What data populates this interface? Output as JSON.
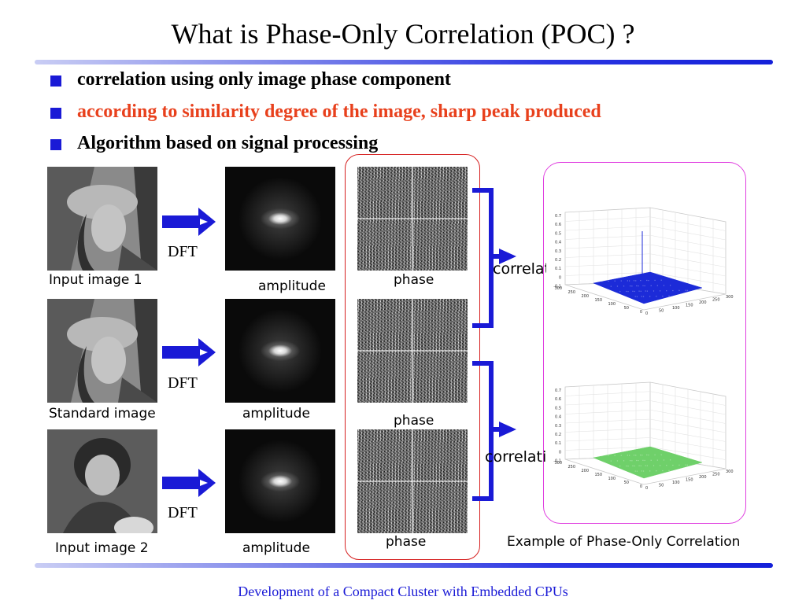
{
  "slide": {
    "title": "What is Phase-Only Correlation (POC) ?",
    "bullets": [
      {
        "text": "correlation using only image phase component",
        "color": "#000000"
      },
      {
        "text": "according to similarity degree of the image, sharp peak produced",
        "color": "#e8401c"
      },
      {
        "text": "Algorithm based on signal processing",
        "color": "#000000"
      }
    ],
    "footer": "Development of a Compact Cluster with Embedded CPUs"
  },
  "diagram": {
    "rows": [
      {
        "input_caption": "Input image 1",
        "transform": "DFT",
        "amplitude_caption": "amplitude",
        "phase_caption": "phase"
      },
      {
        "input_caption": "Standard image",
        "transform": "DFT",
        "amplitude_caption": "amplitude",
        "phase_caption": "phase"
      },
      {
        "input_caption": "Input image 2",
        "transform": "DFT",
        "amplitude_caption": "amplitude",
        "phase_caption": "phase"
      }
    ],
    "correlation_labels": [
      "correlation",
      "correlation"
    ],
    "result_caption": "Example of Phase-Only Correlation",
    "arrow_color": "#1a1ad6",
    "phase_box_color": "#d62020",
    "result_box_color": "#e040e0"
  },
  "plots": {
    "z_ticks": [
      "0.7",
      "0.6",
      "0.5",
      "0.4",
      "0.3",
      "0.2",
      "0.1",
      "0",
      "-0.1"
    ],
    "y_ticks": [
      "300",
      "250",
      "200",
      "150",
      "100",
      "50",
      "0"
    ],
    "x_ticks": [
      "0",
      "50",
      "100",
      "150",
      "200",
      "250",
      "300"
    ],
    "surface_colors": [
      "#1c2bd8",
      "#6fd06a"
    ]
  }
}
